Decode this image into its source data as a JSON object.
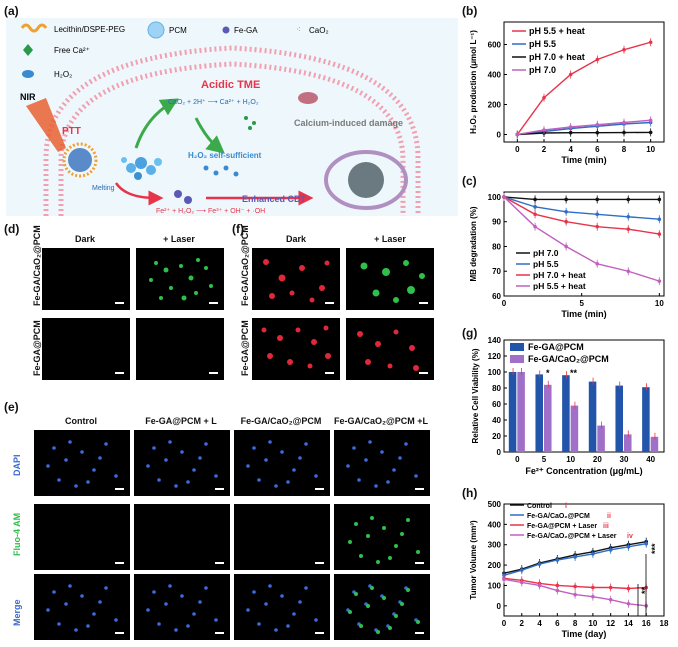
{
  "panel_labels": {
    "a": "(a)",
    "b": "(b)",
    "c": "(c)",
    "d": "(d)",
    "e": "(e)",
    "f": "(f)",
    "g": "(g)",
    "h": "(h)"
  },
  "schematic": {
    "legend": {
      "lecithin": "Lecithin/DSPE-PEG",
      "pcm": "PCM",
      "fega": "Fe-GA",
      "cao2": "CaO₂",
      "free_ca": "Free Ca²⁺",
      "h2o2": "H₂O₂"
    },
    "acidic_tme": "Acidic TME",
    "nir": "NIR",
    "ptt": "PTT",
    "melting": "Melting",
    "reaction1": "CaO₂ + 2H⁺ ⟶ Ca²⁺ + H₂O₂",
    "calcium_damage": "Calcium-induced damage",
    "self_sufficient": "H₂O₂ self-sufficient",
    "enhanced_cdt": "Enhanced CDT",
    "fenton": "Fe²⁺ + H₂O₂ ⟶ Fe³⁺ + OH⁻ + ·OH"
  },
  "panel_d": {
    "col1": "Dark",
    "col2": "+ Laser",
    "row1": "Fe-GA/CaO₂@PCM",
    "row2": "Fe-GA@PCM"
  },
  "panel_f": {
    "col1": "Dark",
    "col2": "+ Laser",
    "row1": "Fe-GA/CaO₂@PCM",
    "row2": "Fe-GA@PCM"
  },
  "panel_e": {
    "cols": [
      "Control",
      "Fe-GA@PCM + L",
      "Fe-GA/CaO₂@PCM",
      "Fe-GA/CaO₂@PCM +L"
    ],
    "rows": [
      "DAPI",
      "Fluo-4 AM",
      "Merge"
    ]
  },
  "colors": {
    "red": "#e8344a",
    "blue": "#2e6ec6",
    "black": "#111111",
    "purple": "#c060c0",
    "bar_blue": "#2255aa",
    "bar_purple": "#a070c8",
    "membrane": "#f0a0b0",
    "bg_cell": "#eaf6fa"
  },
  "chart_data": [
    {
      "id": "b",
      "type": "line",
      "title": "",
      "xlabel": "Time (min)",
      "ylabel": "H₂O₂ production (μmol L⁻¹)",
      "xlim": [
        -1,
        11
      ],
      "ylim": [
        -50,
        750
      ],
      "x": [
        0,
        2,
        4,
        6,
        8,
        10
      ],
      "xticks": [
        "0",
        "2",
        "4",
        "6",
        "8",
        "10"
      ],
      "yticks": [
        "0",
        "200",
        "400",
        "600"
      ],
      "series": [
        {
          "name": "pH 5.5 + heat",
          "values": [
            0,
            245,
            400,
            500,
            565,
            615
          ]
        },
        {
          "name": "pH 5.5",
          "values": [
            0,
            20,
            40,
            55,
            70,
            80
          ]
        },
        {
          "name": "pH 7.0 + heat",
          "values": [
            0,
            10,
            12,
            12,
            13,
            14
          ]
        },
        {
          "name": "pH 7.0",
          "values": [
            0,
            30,
            50,
            65,
            80,
            95
          ]
        }
      ]
    },
    {
      "id": "c",
      "type": "line",
      "xlabel": "Time (min)",
      "ylabel": "MB degradation (%)",
      "xlim": [
        0,
        10.3
      ],
      "ylim": [
        60,
        102
      ],
      "x": [
        0,
        2,
        4,
        6,
        8,
        10
      ],
      "xticks": [
        "0",
        "5",
        "10"
      ],
      "yticks": [
        "60",
        "70",
        "80",
        "90",
        "100"
      ],
      "series": [
        {
          "name": "pH 7.0",
          "values": [
            100,
            99,
            99,
            99,
            99,
            99
          ]
        },
        {
          "name": "pH 5.5",
          "values": [
            100,
            96,
            94,
            93,
            92,
            91
          ]
        },
        {
          "name": "pH 7.0 + heat",
          "values": [
            100,
            93,
            90,
            88,
            87,
            85
          ]
        },
        {
          "name": "pH 5.5 + heat",
          "values": [
            100,
            88,
            80,
            73,
            70,
            66
          ]
        }
      ]
    },
    {
      "id": "g",
      "type": "bar",
      "xlabel": "Fe²⁺ Concentration (μg/mL)",
      "ylabel": "Relative Cell Viability (%)",
      "ylim": [
        0,
        140
      ],
      "categories": [
        "0",
        "5",
        "10",
        "20",
        "30",
        "40"
      ],
      "yticks": [
        "0",
        "20",
        "40",
        "60",
        "80",
        "100",
        "120",
        "140"
      ],
      "series": [
        {
          "name": "Fe-GA@PCM",
          "values": [
            100,
            97,
            96,
            88,
            83,
            81
          ]
        },
        {
          "name": "Fe-GA/CaO₂@PCM",
          "values": [
            100,
            84,
            58,
            33,
            22,
            19
          ]
        }
      ],
      "annotations": [
        "*",
        "**"
      ]
    },
    {
      "id": "h",
      "type": "line",
      "xlabel": "Time (day)",
      "ylabel": "Tumor Volume (mm³)",
      "xlim": [
        0,
        18
      ],
      "ylim": [
        -50,
        500
      ],
      "x": [
        0,
        2,
        4,
        6,
        8,
        10,
        12,
        14,
        16
      ],
      "xticks": [
        "0",
        "2",
        "4",
        "6",
        "8",
        "10",
        "12",
        "14",
        "16",
        "18"
      ],
      "yticks": [
        "0",
        "100",
        "200",
        "300",
        "400",
        "500"
      ],
      "series": [
        {
          "name": "Control",
          "roman": "i",
          "values": [
            160,
            180,
            210,
            230,
            250,
            265,
            285,
            300,
            315
          ]
        },
        {
          "name": "Fe-GA/CaO₂@PCM",
          "roman": "ii",
          "values": [
            150,
            175,
            205,
            225,
            240,
            255,
            275,
            290,
            305
          ]
        },
        {
          "name": "Fe-GA@PCM + Laser",
          "roman": "iii",
          "values": [
            135,
            125,
            110,
            100,
            95,
            90,
            90,
            85,
            90
          ]
        },
        {
          "name": "Fe-GA/CaO₂@PCM + Laser",
          "roman": "iv",
          "values": [
            130,
            115,
            100,
            75,
            55,
            45,
            30,
            10,
            0
          ]
        }
      ],
      "significance": [
        "***",
        "**"
      ]
    }
  ]
}
